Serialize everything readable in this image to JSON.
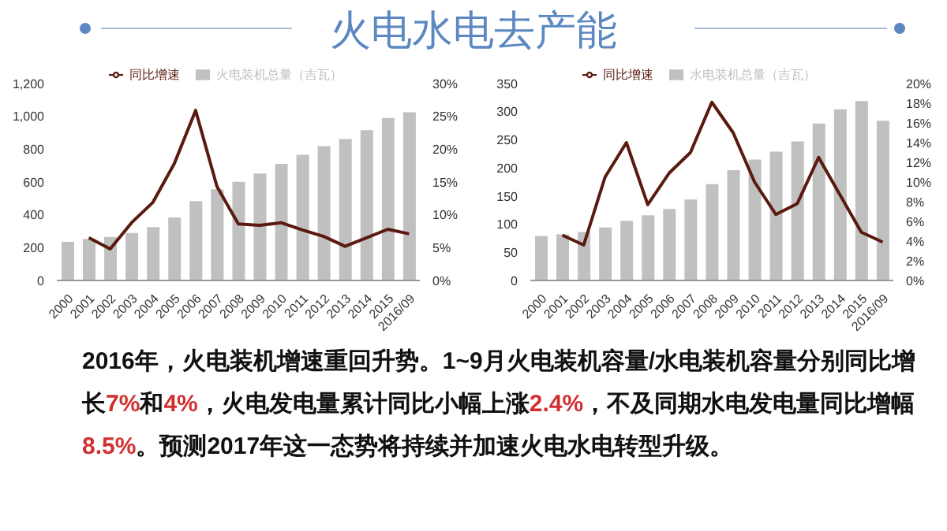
{
  "chart_data": [
    {
      "type": "other",
      "title": "火电水电去产能"
    },
    {
      "type": "bar",
      "categories": [
        "2000",
        "2001",
        "2002",
        "2003",
        "2004",
        "2005",
        "2006",
        "2007",
        "2008",
        "2009",
        "2010",
        "2011",
        "2012",
        "2013",
        "2014",
        "2015",
        "2016/09"
      ],
      "series": [
        {
          "name": "火电装机总量（吉瓦）",
          "type": "bar",
          "color": "#c0c0c0",
          "values": [
            235,
            253,
            265,
            289,
            325,
            384,
            484,
            556,
            601,
            652,
            710,
            766,
            819,
            862,
            916,
            990,
            1025
          ]
        },
        {
          "name": "同比增速",
          "type": "line",
          "axis": "y2",
          "color": "#5a1a10",
          "values": [
            null,
            6.5,
            4.8,
            8.8,
            11.9,
            17.8,
            25.9,
            14.3,
            8.6,
            8.4,
            8.8,
            7.7,
            6.7,
            5.2,
            6.5,
            7.8,
            7.1
          ]
        }
      ],
      "ylim": [
        0,
        1200
      ],
      "yticks": [
        0,
        200,
        400,
        600,
        800,
        {
          "value": 1000,
          "label": "1,000"
        },
        {
          "value": 1200,
          "label": "1,200"
        }
      ],
      "y2lim": [
        0,
        30
      ],
      "y2ticks": [
        {
          "value": 0,
          "label": "0%"
        },
        {
          "value": 5,
          "label": "5%"
        },
        {
          "value": 10,
          "label": "10%"
        },
        {
          "value": 15,
          "label": "15%"
        },
        {
          "value": 20,
          "label": "20%"
        },
        {
          "value": 25,
          "label": "25%"
        },
        {
          "value": 30,
          "label": "30%"
        }
      ],
      "legend": "top",
      "marker": "none"
    },
    {
      "type": "bar",
      "categories": [
        "2000",
        "2001",
        "2002",
        "2003",
        "2004",
        "2005",
        "2006",
        "2007",
        "2008",
        "2009",
        "2010",
        "2011",
        "2012",
        "2013",
        "2014",
        "2015",
        "2016/09"
      ],
      "series": [
        {
          "name": "水电装机总量（吉瓦）",
          "type": "bar",
          "color": "#c0c0c0",
          "values": [
            79,
            82,
            86,
            94,
            106,
            116,
            127,
            144,
            171,
            196,
            215,
            229,
            247,
            279,
            304,
            319,
            284
          ]
        },
        {
          "name": "同比增速",
          "type": "line",
          "axis": "y2",
          "color": "#5a1a10",
          "values": [
            null,
            4.6,
            3.6,
            10.5,
            14.0,
            7.7,
            10.9,
            13.0,
            18.1,
            15.0,
            10.0,
            6.7,
            7.8,
            12.5,
            8.7,
            4.9,
            3.9
          ]
        }
      ],
      "ylim": [
        0,
        350
      ],
      "yticks": [
        0,
        50,
        100,
        150,
        200,
        250,
        300,
        350
      ],
      "y2lim": [
        0,
        20
      ],
      "y2ticks": [
        {
          "value": 0,
          "label": "0%"
        },
        {
          "value": 2,
          "label": "2%"
        },
        {
          "value": 4,
          "label": "4%"
        },
        {
          "value": 6,
          "label": "6%"
        },
        {
          "value": 8,
          "label": "8%"
        },
        {
          "value": 10,
          "label": "10%"
        },
        {
          "value": 12,
          "label": "12%"
        },
        {
          "value": 14,
          "label": "14%"
        },
        {
          "value": 16,
          "label": "16%"
        },
        {
          "value": 18,
          "label": "18%"
        },
        {
          "value": 20,
          "label": "20%"
        }
      ],
      "legend": "top",
      "marker": "none"
    },
    {
      "type": "other",
      "annotations": [
        "2016年，火电装机增速重回升势。1~9月火电装机容量/水电装机容量分别同比增长7%和4%，火电发电量累计同比小幅上涨2.4%，不及同期水电发电量同比增幅8.5%。预测2017年这一态势将持续并加速火电水电转型升级。"
      ]
    }
  ]
}
